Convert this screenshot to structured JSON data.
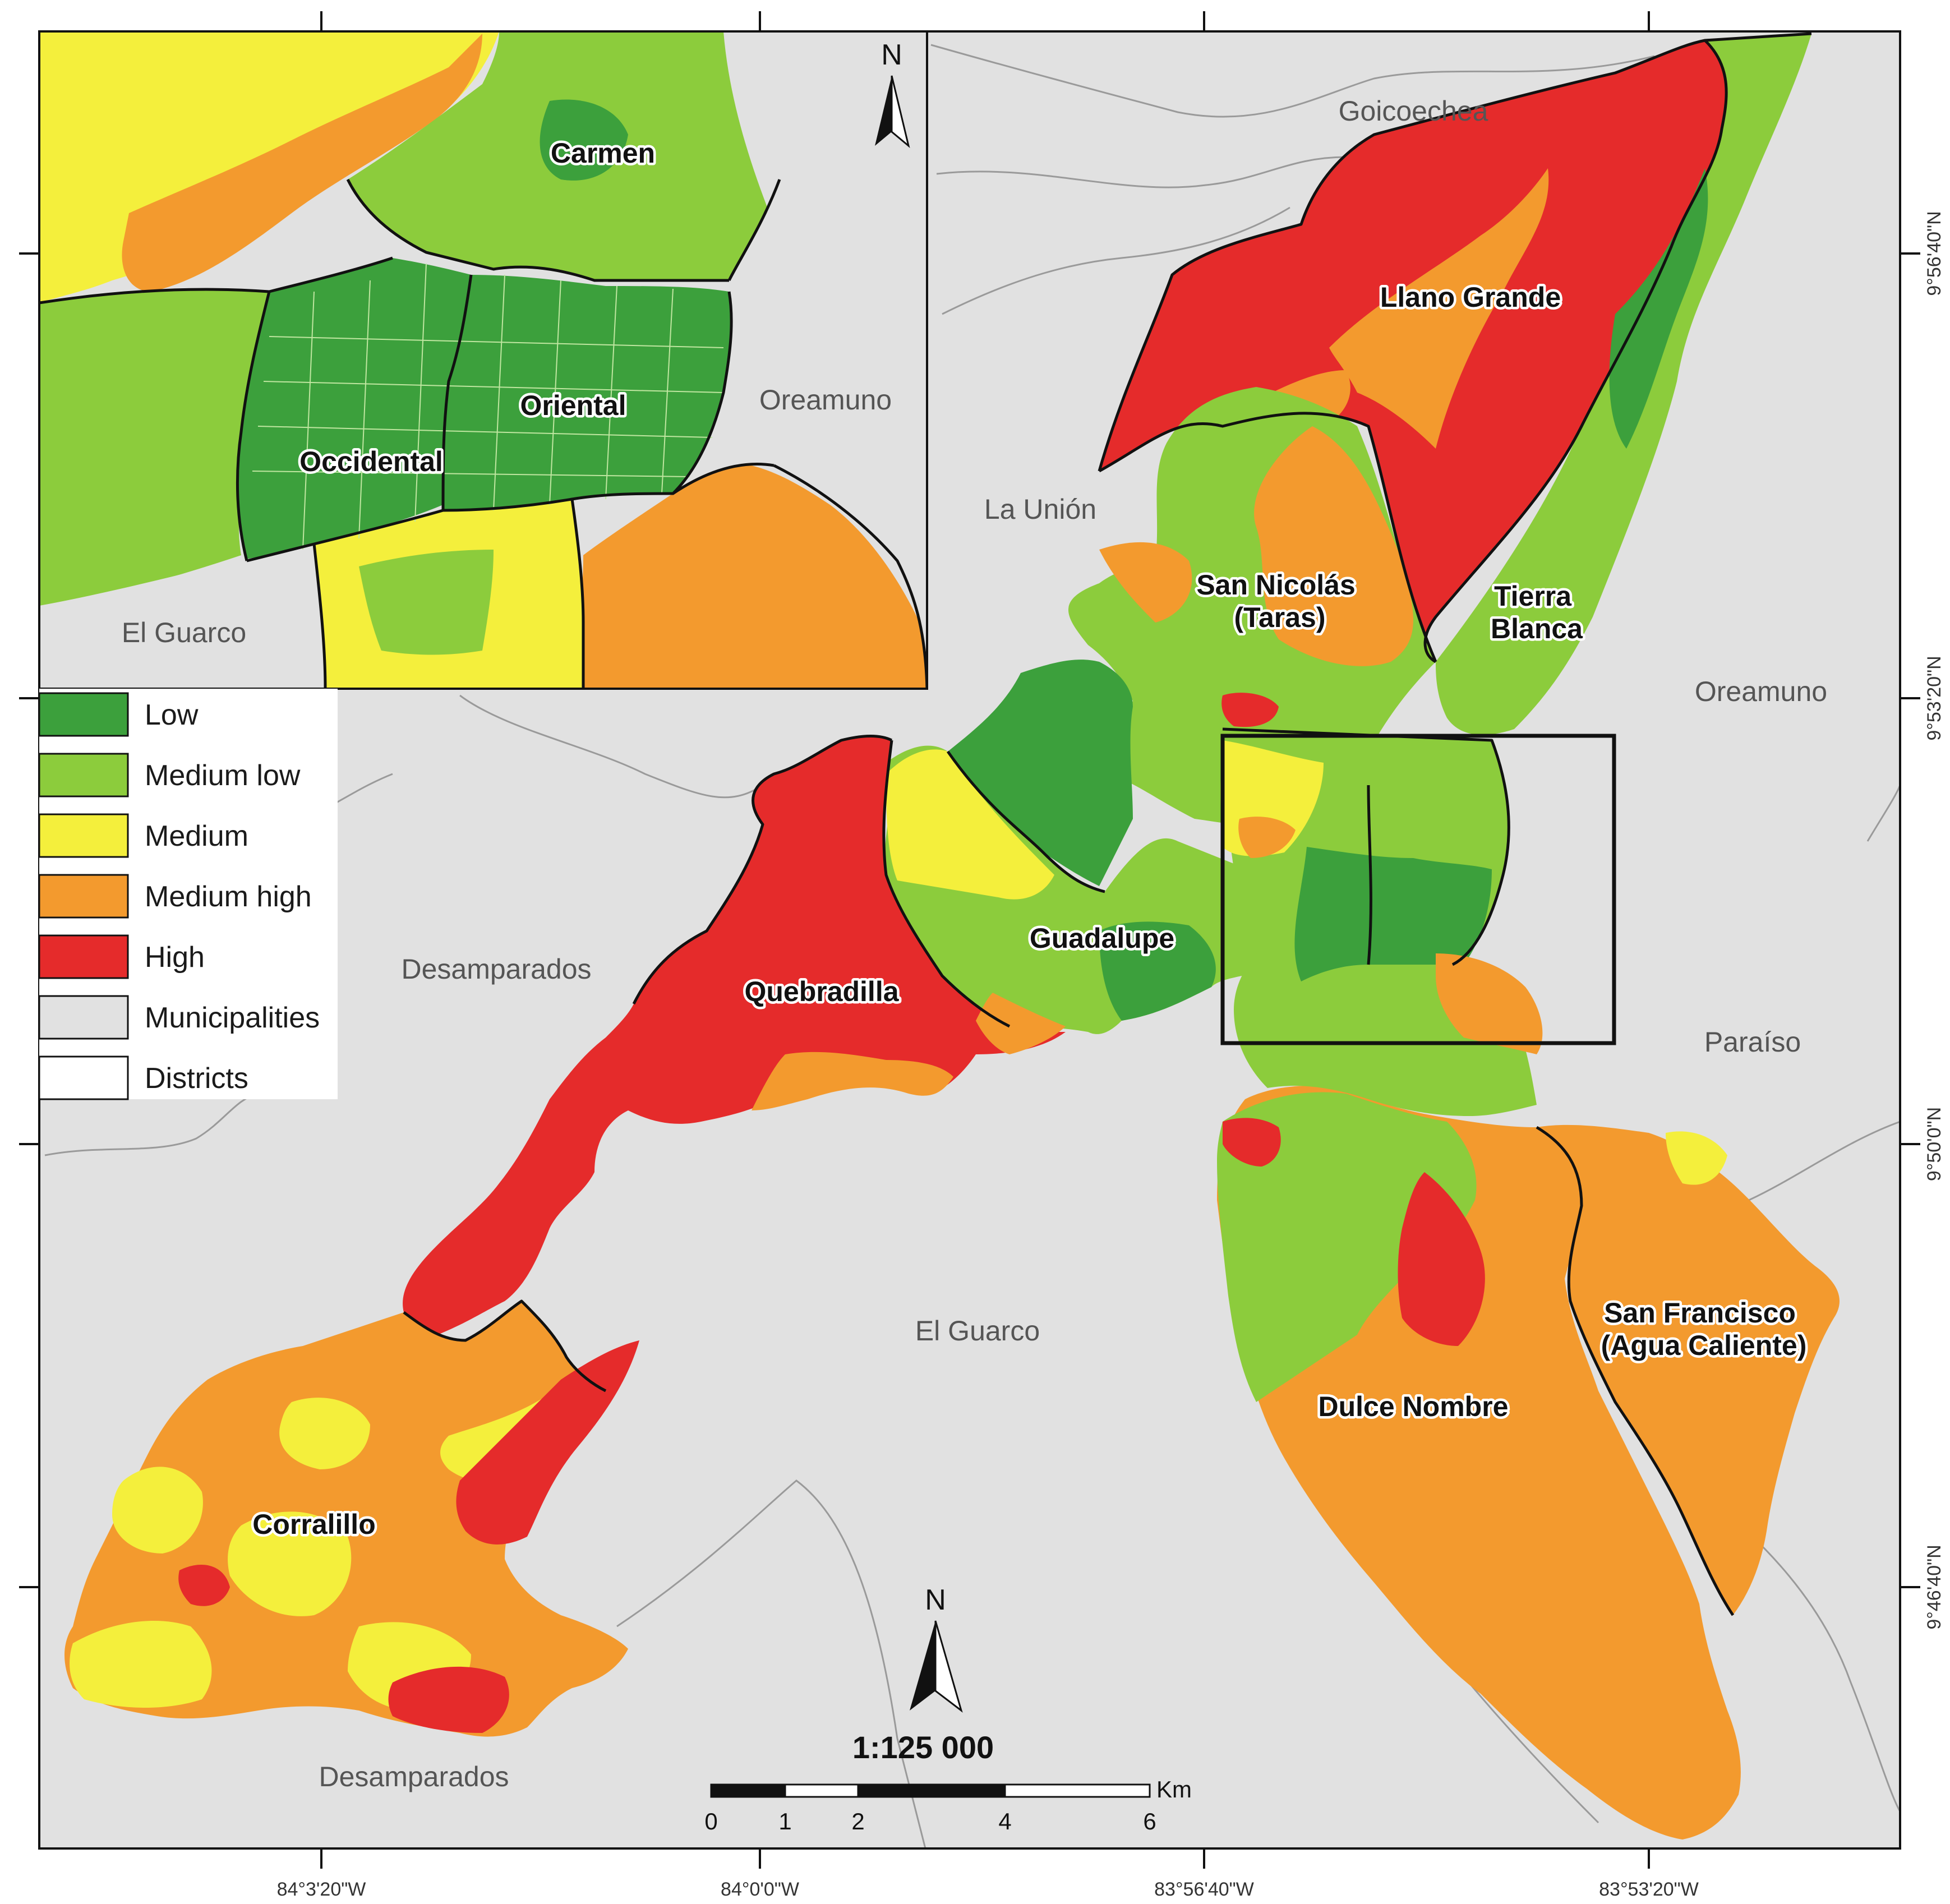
{
  "scale": {
    "ratio": "1:125 000",
    "unit": "Km",
    "ticks": [
      "0",
      "1",
      "2",
      "4",
      "6"
    ]
  },
  "north_arrow": {
    "letter": "N"
  },
  "legend": [
    {
      "label": "Low",
      "color": "#3ca03c"
    },
    {
      "label": "Medium low",
      "color": "#8ccc3c"
    },
    {
      "label": "Medium",
      "color": "#f4ef3c"
    },
    {
      "label": "Medium high",
      "color": "#f39a2e"
    },
    {
      "label": "High",
      "color": "#e52b2b"
    },
    {
      "label": "Municipalities",
      "color": "#e1e1e1"
    },
    {
      "label": "Districts",
      "color": "#ffffff"
    }
  ],
  "districts": {
    "llano_grande": "Llano Grande",
    "san_nicolas": "San Nicolás\n(Taras)",
    "tierra_blanca": "Tierra\nBlanca",
    "guadalupe": "Guadalupe",
    "quebradilla": "Quebradilla",
    "corralillo": "Corralillo",
    "dulce_nombre": "Dulce Nombre",
    "san_francisco": "San Francisco\n(Agua Caliente)"
  },
  "inset_districts": {
    "carmen": "Carmen",
    "oriental": "Oriental",
    "occidental": "Occidental"
  },
  "municipalities": {
    "goicoechea": "Goicoechea",
    "la_union": "La Unión",
    "oreamuno_main": "Oreamuno",
    "paraiso": "Paraíso",
    "desamparados_mid": "Desamparados",
    "desamparados_bottom": "Desamparados",
    "el_guarco_main": "El Guarco",
    "oreamuno_inset": "Oreamuno",
    "el_guarco_inset": "El Guarco"
  },
  "longitude_ticks": [
    "84°3'20\"W",
    "84°0'0\"W",
    "83°56'40\"W",
    "83°53'20\"W"
  ],
  "latitude_ticks": [
    "9°56'40\"N",
    "9°53'20\"N",
    "9°50'0\"N",
    "9°46'40\"N"
  ]
}
